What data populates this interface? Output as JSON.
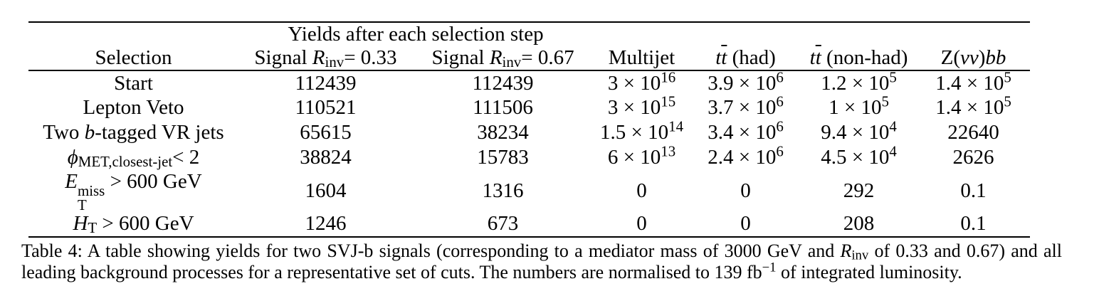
{
  "page": {
    "background_color": "#ffffff",
    "text_color": "#000000"
  },
  "table": {
    "span_header": "Yields after each selection step",
    "columns": [
      [
        {
          "t": "Selection"
        }
      ],
      [
        {
          "t": "Signal "
        },
        {
          "t": "R",
          "k": "i"
        },
        {
          "t": "inv",
          "k": "sub"
        },
        {
          "t": "= 0.33"
        }
      ],
      [
        {
          "t": "Signal "
        },
        {
          "t": "R",
          "k": "i"
        },
        {
          "t": "inv",
          "k": "sub"
        },
        {
          "t": "= 0.67"
        }
      ],
      [
        {
          "t": "Multijet"
        }
      ],
      [
        {
          "t": "t",
          "k": "i"
        },
        {
          "t": "t",
          "k": "bar-i"
        },
        {
          "t": " (had)"
        }
      ],
      [
        {
          "t": "t",
          "k": "i"
        },
        {
          "t": "t",
          "k": "bar-i"
        },
        {
          "t": " (non-had)"
        }
      ],
      [
        {
          "t": "Z("
        },
        {
          "t": "νν",
          "k": "i"
        },
        {
          "t": ")"
        },
        {
          "t": "bb",
          "k": "i"
        }
      ]
    ],
    "rows": [
      {
        "cells": [
          [
            {
              "t": "Start"
            }
          ],
          [
            {
              "t": "112439"
            }
          ],
          [
            {
              "t": "112439"
            }
          ],
          [
            {
              "t": "3 × 10"
            },
            {
              "t": "16",
              "k": "sup"
            }
          ],
          [
            {
              "t": "3.9 × 10"
            },
            {
              "t": "6",
              "k": "sup"
            }
          ],
          [
            {
              "t": "1.2 × 10"
            },
            {
              "t": "5",
              "k": "sup"
            }
          ],
          [
            {
              "t": "1.4 × 10"
            },
            {
              "t": "5",
              "k": "sup"
            }
          ]
        ]
      },
      {
        "cells": [
          [
            {
              "t": "Lepton Veto"
            }
          ],
          [
            {
              "t": "110521"
            }
          ],
          [
            {
              "t": "111506"
            }
          ],
          [
            {
              "t": "3 × 10"
            },
            {
              "t": "15",
              "k": "sup"
            }
          ],
          [
            {
              "t": "3.7 × 10"
            },
            {
              "t": "6",
              "k": "sup"
            }
          ],
          [
            {
              "t": "1 × 10"
            },
            {
              "t": "5",
              "k": "sup"
            }
          ],
          [
            {
              "t": "1.4 × 10"
            },
            {
              "t": "5",
              "k": "sup"
            }
          ]
        ]
      },
      {
        "cells": [
          [
            {
              "t": "Two "
            },
            {
              "t": "b",
              "k": "i"
            },
            {
              "t": "-tagged VR jets"
            }
          ],
          [
            {
              "t": "65615"
            }
          ],
          [
            {
              "t": "38234"
            }
          ],
          [
            {
              "t": "1.5 × 10"
            },
            {
              "t": "14",
              "k": "sup"
            }
          ],
          [
            {
              "t": "3.4 × 10"
            },
            {
              "t": "6",
              "k": "sup"
            }
          ],
          [
            {
              "t": "9.4 × 10"
            },
            {
              "t": "4",
              "k": "sup"
            }
          ],
          [
            {
              "t": "22640"
            }
          ]
        ]
      },
      {
        "cells": [
          [
            {
              "t": "ϕ",
              "k": "i"
            },
            {
              "t": "MET,closest-jet",
              "k": "sub"
            },
            {
              "t": "< 2"
            }
          ],
          [
            {
              "t": "38824"
            }
          ],
          [
            {
              "t": "15783"
            }
          ],
          [
            {
              "t": "6 × 10"
            },
            {
              "t": "13",
              "k": "sup"
            }
          ],
          [
            {
              "t": "2.4 × 10"
            },
            {
              "t": "6",
              "k": "sup"
            }
          ],
          [
            {
              "t": "4.5 × 10"
            },
            {
              "t": "4",
              "k": "sup"
            }
          ],
          [
            {
              "t": "2626"
            }
          ]
        ]
      },
      {
        "cells": [
          [
            {
              "t": "E",
              "k": "i"
            },
            {
              "k": "stack",
              "sup": "miss",
              "sub": "T"
            },
            {
              "t": " > 600 GeV"
            }
          ],
          [
            {
              "t": "1604"
            }
          ],
          [
            {
              "t": "1316"
            }
          ],
          [
            {
              "t": "0"
            }
          ],
          [
            {
              "t": "0"
            }
          ],
          [
            {
              "t": "292"
            }
          ],
          [
            {
              "t": "0.1"
            }
          ]
        ]
      },
      {
        "cells": [
          [
            {
              "t": "H",
              "k": "i"
            },
            {
              "t": "T",
              "k": "sub"
            },
            {
              "t": " > 600 GeV"
            }
          ],
          [
            {
              "t": "1246"
            }
          ],
          [
            {
              "t": "673"
            }
          ],
          [
            {
              "t": "0"
            }
          ],
          [
            {
              "t": "0"
            }
          ],
          [
            {
              "t": "208"
            }
          ],
          [
            {
              "t": "0.1"
            }
          ]
        ]
      }
    ]
  },
  "caption": [
    {
      "t": "Table 4:  A table showing yields for two SVJ-b signals (corresponding to a mediator mass of 3000 GeV and "
    },
    {
      "t": "R",
      "k": "i"
    },
    {
      "t": "inv",
      "k": "sub"
    },
    {
      "t": " of 0.33 and 0.67) and all leading background processes for a representative set of cuts. The numbers are normalised to 139 fb"
    },
    {
      "t": "−1",
      "k": "sup"
    },
    {
      "t": " of integrated luminosity."
    }
  ]
}
